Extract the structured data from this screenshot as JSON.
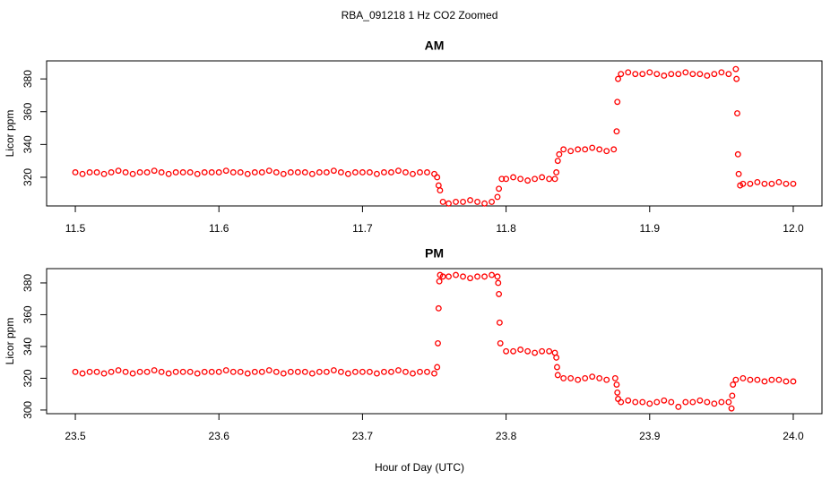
{
  "title": "RBA_091218  1 Hz CO2 Zoomed",
  "x_label": "Hour of Day (UTC)",
  "chart_data": [
    {
      "type": "scatter",
      "title": "AM",
      "y_label": "Licor ppm",
      "color": "#ff0000",
      "xlim": [
        11.48,
        12.02
      ],
      "ylim": [
        302.5,
        391
      ],
      "xticks": [
        11.5,
        11.6,
        11.7,
        11.8,
        11.9,
        {
          "value": 12,
          "label": "12.0"
        }
      ],
      "yticks": [
        320,
        340,
        360,
        380
      ],
      "x": [
        11.5,
        11.505,
        11.51,
        11.515,
        11.52,
        11.525,
        11.53,
        11.535,
        11.54,
        11.545,
        11.55,
        11.555,
        11.56,
        11.565,
        11.57,
        11.575,
        11.58,
        11.585,
        11.59,
        11.595,
        11.6,
        11.605,
        11.61,
        11.615,
        11.62,
        11.625,
        11.63,
        11.635,
        11.64,
        11.645,
        11.65,
        11.655,
        11.66,
        11.665,
        11.67,
        11.675,
        11.68,
        11.685,
        11.69,
        11.695,
        11.7,
        11.705,
        11.71,
        11.715,
        11.72,
        11.725,
        11.73,
        11.735,
        11.74,
        11.745,
        11.75,
        11.752,
        11.753,
        11.754,
        11.756,
        11.76,
        11.765,
        11.77,
        11.775,
        11.78,
        11.785,
        11.79,
        11.794,
        11.795,
        11.797,
        11.8,
        11.805,
        11.81,
        11.815,
        11.82,
        11.825,
        11.83,
        11.834,
        11.835,
        11.836,
        11.837,
        11.84,
        11.845,
        11.85,
        11.855,
        11.86,
        11.865,
        11.87,
        11.875,
        11.877,
        11.8775,
        11.878,
        11.88,
        11.885,
        11.89,
        11.895,
        11.9,
        11.905,
        11.91,
        11.915,
        11.92,
        11.925,
        11.93,
        11.935,
        11.94,
        11.945,
        11.95,
        11.955,
        11.96,
        11.9605,
        11.961,
        11.9615,
        11.962,
        11.963,
        11.965,
        11.97,
        11.975,
        11.98,
        11.985,
        11.99,
        11.995,
        12.0
      ],
      "values": [
        323,
        322,
        323,
        323,
        322,
        323,
        324,
        323,
        322,
        323,
        323,
        324,
        323,
        322,
        323,
        323,
        323,
        322,
        323,
        323,
        323,
        324,
        323,
        323,
        322,
        323,
        323,
        324,
        323,
        322,
        323,
        323,
        323,
        322,
        323,
        323,
        324,
        323,
        322,
        323,
        323,
        323,
        322,
        323,
        323,
        324,
        323,
        322,
        323,
        323,
        322,
        320,
        315,
        312,
        305,
        304,
        305,
        305,
        306,
        305,
        304,
        305,
        308,
        313,
        319,
        319,
        320,
        319,
        318,
        319,
        320,
        319,
        319,
        323,
        330,
        334,
        337,
        336,
        337,
        337,
        338,
        337,
        336,
        337,
        348,
        366,
        380,
        383,
        384,
        383,
        383,
        384,
        383,
        382,
        383,
        383,
        384,
        383,
        383,
        382,
        383,
        384,
        383,
        386,
        380,
        359,
        334,
        322,
        315,
        316,
        316,
        317,
        316,
        316,
        317,
        316,
        316
      ]
    },
    {
      "type": "scatter",
      "title": "PM",
      "y_label": "Licor ppm",
      "color": "#ff0000",
      "xlim": [
        23.48,
        24.02
      ],
      "ylim": [
        297.7,
        389
      ],
      "xticks": [
        23.5,
        23.6,
        23.7,
        23.8,
        23.9,
        {
          "value": 24,
          "label": "24.0"
        }
      ],
      "yticks": [
        300,
        320,
        340,
        360,
        380
      ],
      "x": [
        23.5,
        23.505,
        23.51,
        23.515,
        23.52,
        23.525,
        23.53,
        23.535,
        23.54,
        23.545,
        23.55,
        23.555,
        23.56,
        23.565,
        23.57,
        23.575,
        23.58,
        23.585,
        23.59,
        23.595,
        23.6,
        23.605,
        23.61,
        23.615,
        23.62,
        23.625,
        23.63,
        23.635,
        23.64,
        23.645,
        23.65,
        23.655,
        23.66,
        23.665,
        23.67,
        23.675,
        23.68,
        23.685,
        23.69,
        23.695,
        23.7,
        23.705,
        23.71,
        23.715,
        23.72,
        23.725,
        23.73,
        23.735,
        23.74,
        23.745,
        23.75,
        23.752,
        23.7525,
        23.753,
        23.7535,
        23.754,
        23.756,
        23.76,
        23.765,
        23.77,
        23.775,
        23.78,
        23.785,
        23.79,
        23.794,
        23.7945,
        23.795,
        23.7955,
        23.796,
        23.8,
        23.805,
        23.81,
        23.815,
        23.82,
        23.825,
        23.83,
        23.834,
        23.835,
        23.8355,
        23.836,
        23.84,
        23.845,
        23.85,
        23.855,
        23.86,
        23.865,
        23.87,
        23.876,
        23.877,
        23.8775,
        23.878,
        23.88,
        23.885,
        23.89,
        23.895,
        23.9,
        23.905,
        23.91,
        23.915,
        23.92,
        23.925,
        23.93,
        23.935,
        23.94,
        23.945,
        23.95,
        23.955,
        23.957,
        23.9575,
        23.958,
        23.96,
        23.965,
        23.97,
        23.975,
        23.98,
        23.985,
        23.99,
        23.995,
        24.0
      ],
      "values": [
        324,
        323,
        324,
        324,
        323,
        324,
        325,
        324,
        323,
        324,
        324,
        325,
        324,
        323,
        324,
        324,
        324,
        323,
        324,
        324,
        324,
        325,
        324,
        324,
        323,
        324,
        324,
        325,
        324,
        323,
        324,
        324,
        324,
        323,
        324,
        324,
        325,
        324,
        323,
        324,
        324,
        324,
        323,
        324,
        324,
        325,
        324,
        323,
        324,
        324,
        323,
        327,
        342,
        364,
        381,
        385,
        384,
        384,
        385,
        384,
        383,
        384,
        384,
        385,
        384,
        380,
        373,
        355,
        342,
        337,
        337,
        338,
        337,
        336,
        337,
        337,
        336,
        333,
        327,
        322,
        320,
        320,
        319,
        320,
        321,
        320,
        319,
        320,
        316,
        311,
        307,
        305,
        306,
        305,
        305,
        304,
        305,
        306,
        305,
        302,
        305,
        305,
        306,
        305,
        304,
        305,
        305,
        301,
        309,
        316,
        319,
        320,
        319,
        319,
        318,
        319,
        319,
        318,
        318
      ]
    }
  ]
}
